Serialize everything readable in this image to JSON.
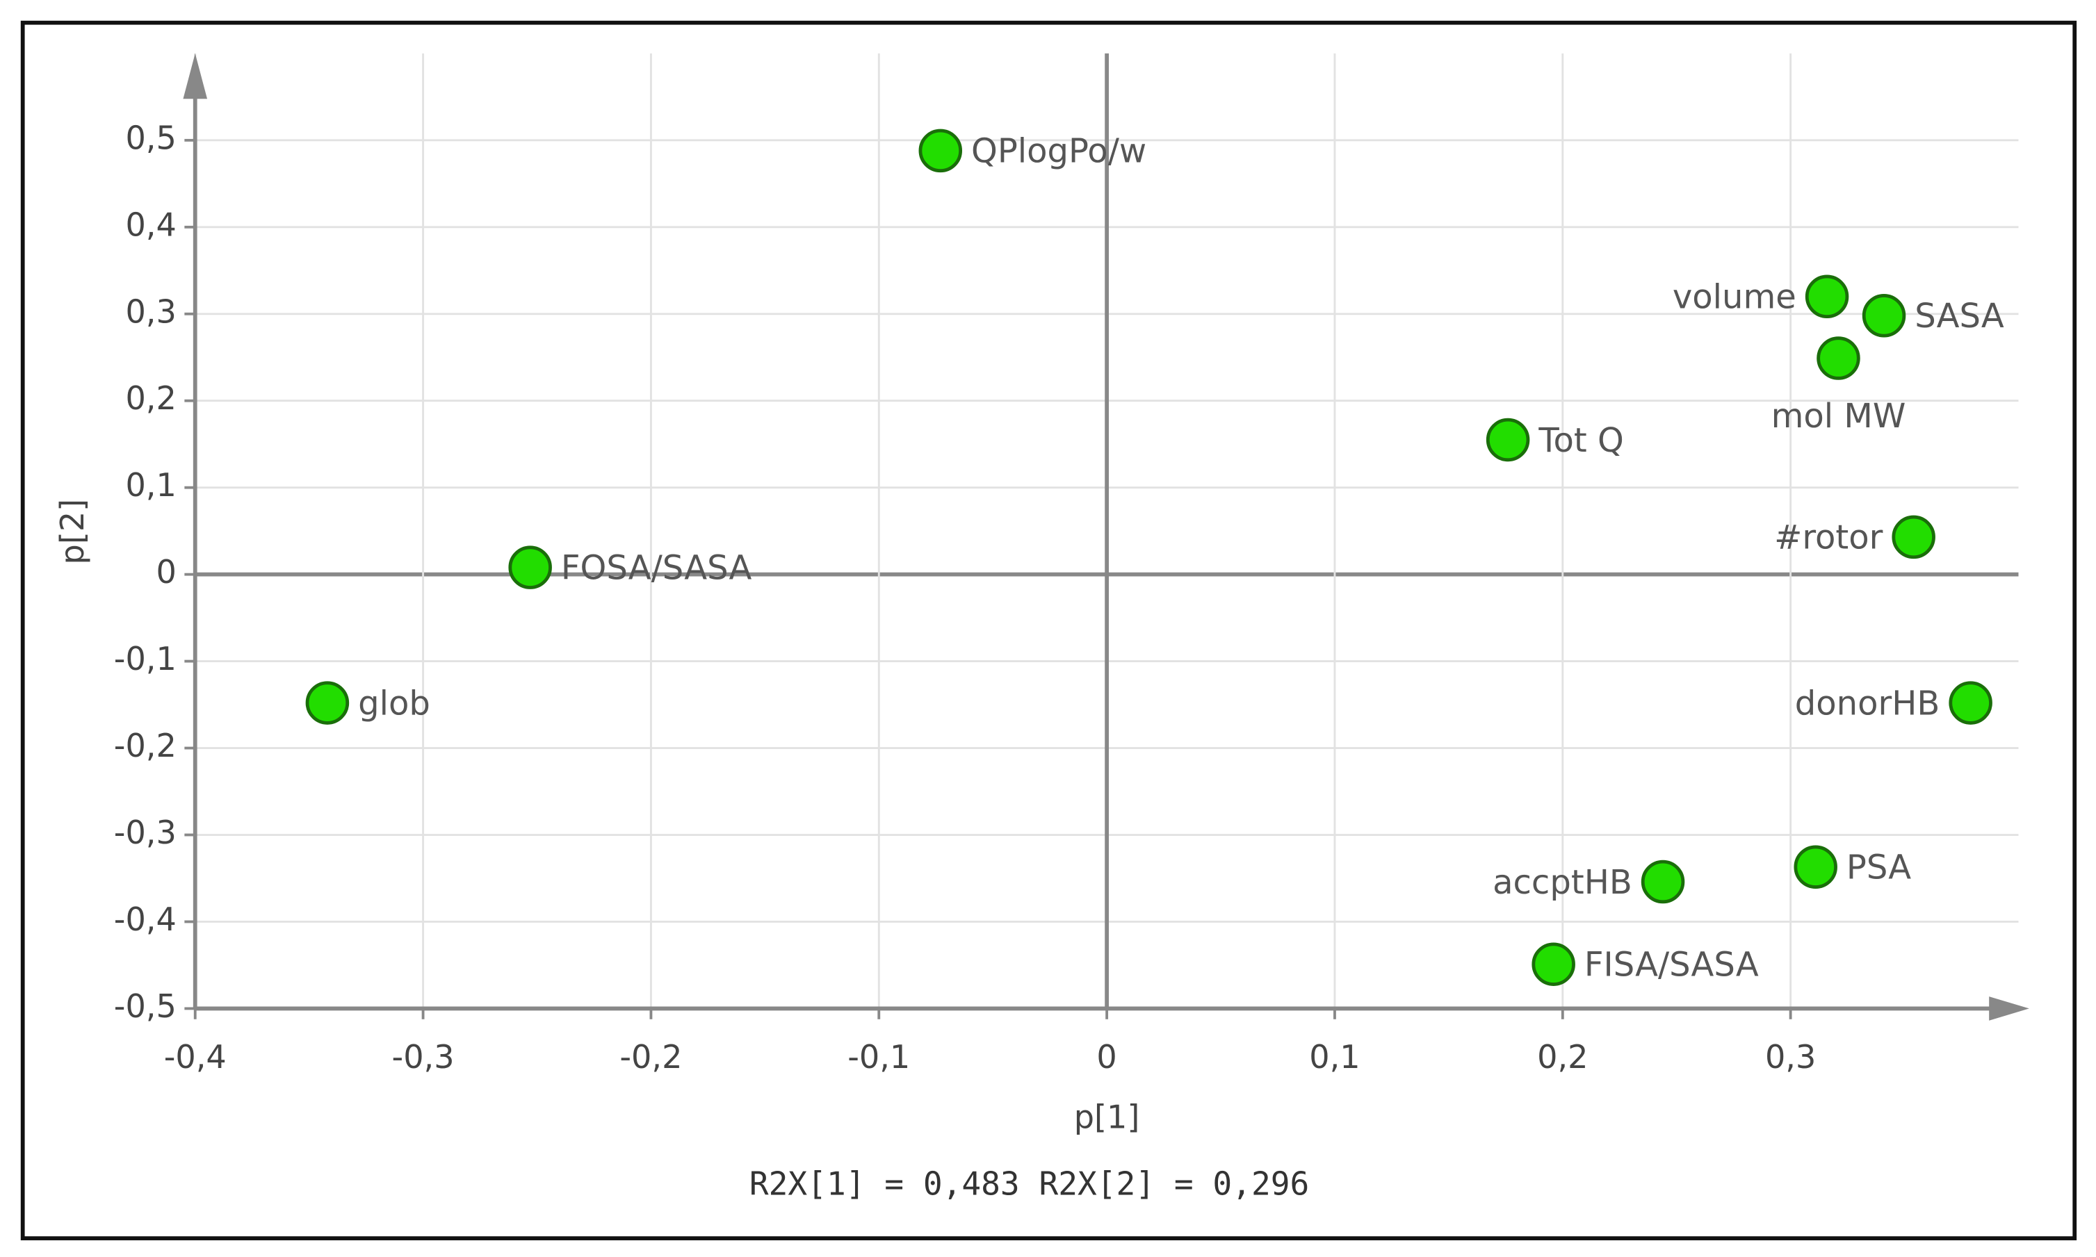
{
  "chart_data": {
    "type": "scatter",
    "x_label": "p[1]",
    "y_label": "p[2]",
    "annotation": "R2X[1] = 0,483 R2X[2] = 0,296",
    "labels": [
      "QPlogPo/w",
      "volume",
      "SASA",
      "mol MW",
      "Tot Q",
      "#rotor",
      "FOSA/SASA",
      "glob",
      "donorHB",
      "PSA",
      "accptHB",
      "FISA/SASA"
    ],
    "x": [
      -0.073,
      0.316,
      0.341,
      0.321,
      0.176,
      0.354,
      -0.253,
      -0.342,
      0.379,
      0.311,
      0.244,
      0.196
    ],
    "values": [
      0.488,
      0.32,
      0.298,
      0.249,
      0.155,
      0.043,
      0.008,
      -0.148,
      -0.148,
      -0.337,
      -0.354,
      -0.449
    ],
    "color": "#22dd00",
    "xlim": [
      -0.4,
      0.4
    ],
    "ylim": [
      -0.5,
      0.6
    ],
    "xticks": [
      {
        "value": -0.4,
        "label": "-0,4"
      },
      {
        "value": -0.3,
        "label": "-0,3"
      },
      {
        "value": -0.2,
        "label": "-0,2"
      },
      {
        "value": -0.1,
        "label": "-0,1"
      },
      0,
      {
        "value": 0.1,
        "label": "0,1"
      },
      {
        "value": 0.2,
        "label": "0,2"
      },
      {
        "value": 0.3,
        "label": "0,3"
      }
    ],
    "yticks": [
      {
        "value": -0.5,
        "label": "-0,5"
      },
      {
        "value": -0.4,
        "label": "-0,4"
      },
      {
        "value": -0.3,
        "label": "-0,3"
      },
      {
        "value": -0.2,
        "label": "-0,2"
      },
      {
        "value": -0.1,
        "label": "-0,1"
      },
      0,
      {
        "value": 0.1,
        "label": "0,1"
      },
      {
        "value": 0.2,
        "label": "0,2"
      },
      {
        "value": 0.3,
        "label": "0,3"
      },
      {
        "value": 0.4,
        "label": "0,4"
      },
      {
        "value": 0.5,
        "label": "0,5"
      }
    ],
    "grid": true
  }
}
